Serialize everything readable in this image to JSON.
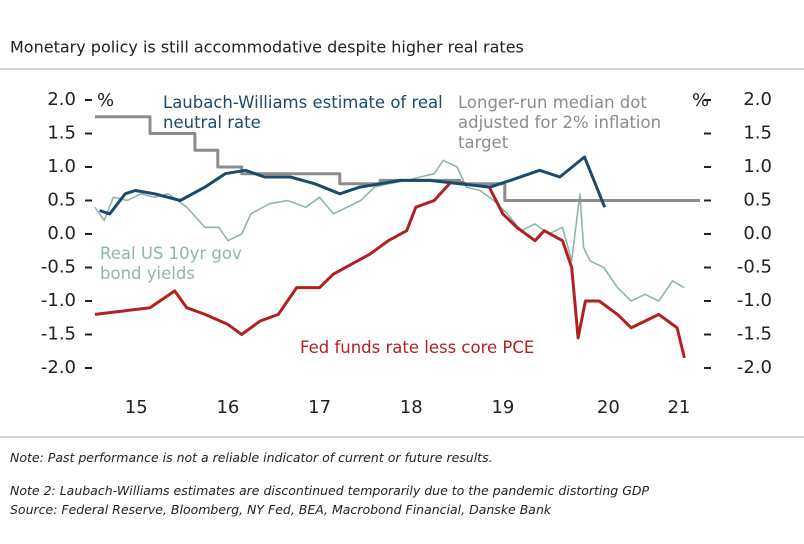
{
  "chart_data": {
    "type": "line",
    "title": "Monetary policy is still accommodative despite higher real rates",
    "y_unit": "%",
    "xlim": [
      2015.0,
      2021.6
    ],
    "xticks": [
      {
        "value": 2015.45,
        "label": "15"
      },
      {
        "value": 2016.45,
        "label": "16"
      },
      {
        "value": 2017.45,
        "label": "17"
      },
      {
        "value": 2018.45,
        "label": "18"
      },
      {
        "value": 2019.45,
        "label": "19"
      },
      {
        "value": 2020.6,
        "label": "20"
      },
      {
        "value": 2021.37,
        "label": "21"
      }
    ],
    "ylim": [
      -2.0,
      2.0
    ],
    "yticks": [
      {
        "value": 2,
        "label": "2.0"
      },
      1.5,
      {
        "value": 1,
        "label": "1.0"
      },
      0.5,
      {
        "value": 0,
        "label": "0.0"
      },
      -0.5,
      {
        "value": -1,
        "label": "-1.0"
      },
      -1.5,
      {
        "value": -2,
        "label": "-2.0"
      }
    ],
    "series": [
      {
        "name": "Laubach-Williams estimate of real neutral rate",
        "color": "#1b4a6b",
        "x": [
          2015.05,
          2015.16,
          2015.33,
          2015.44,
          2015.65,
          2015.93,
          2016.2,
          2016.42,
          2016.64,
          2016.85,
          2017.13,
          2017.4,
          2017.67,
          2017.89,
          2018.11,
          2018.33,
          2018.65,
          2018.98,
          2019.31,
          2019.53,
          2019.85,
          2020.07,
          2020.34,
          2020.56
        ],
        "values": [
          0.35,
          0.3,
          0.6,
          0.65,
          0.6,
          0.5,
          0.7,
          0.9,
          0.95,
          0.85,
          0.85,
          0.75,
          0.6,
          0.7,
          0.75,
          0.8,
          0.8,
          0.75,
          0.7,
          0.8,
          0.95,
          0.85,
          1.15,
          0.4
        ]
      },
      {
        "name": "Longer-run median dot adjusted for 2% inflation target",
        "color": "#8c8c8c",
        "x": [
          2015.0,
          2015.6,
          2015.6,
          2016.09,
          2016.09,
          2016.34,
          2016.34,
          2016.6,
          2016.6,
          2017.67,
          2017.67,
          2018.11,
          2018.11,
          2018.98,
          2018.98,
          2019.47,
          2019.47,
          2021.6
        ],
        "values": [
          1.75,
          1.75,
          1.5,
          1.5,
          1.25,
          1.25,
          1.0,
          1.0,
          0.9,
          0.9,
          0.75,
          0.75,
          0.8,
          0.8,
          0.75,
          0.75,
          0.5,
          0.5
        ]
      },
      {
        "name": "Real US 10yr gov bond yields",
        "color": "#8fb5ae",
        "x": [
          2015.0,
          2015.1,
          2015.2,
          2015.35,
          2015.5,
          2015.65,
          2015.8,
          2016.0,
          2016.2,
          2016.35,
          2016.45,
          2016.6,
          2016.7,
          2016.9,
          2017.1,
          2017.3,
          2017.45,
          2017.6,
          2017.75,
          2017.9,
          2018.05,
          2018.2,
          2018.4,
          2018.55,
          2018.7,
          2018.8,
          2018.95,
          2019.05,
          2019.2,
          2019.35,
          2019.5,
          2019.65,
          2019.8,
          2019.95,
          2020.1,
          2020.2,
          2020.29,
          2020.33,
          2020.4,
          2020.55,
          2020.7,
          2020.85,
          2021.0,
          2021.15,
          2021.3,
          2021.43
        ],
        "values": [
          0.4,
          0.2,
          0.55,
          0.5,
          0.6,
          0.55,
          0.6,
          0.4,
          0.1,
          0.1,
          -0.1,
          0.0,
          0.3,
          0.45,
          0.5,
          0.4,
          0.55,
          0.3,
          0.4,
          0.5,
          0.7,
          0.75,
          0.8,
          0.85,
          0.9,
          1.1,
          1.0,
          0.7,
          0.65,
          0.5,
          0.3,
          0.05,
          0.15,
          0.0,
          0.1,
          -0.4,
          0.6,
          -0.2,
          -0.4,
          -0.5,
          -0.8,
          -1.0,
          -0.9,
          -1.0,
          -0.7,
          -0.8
        ]
      },
      {
        "name": "Fed funds rate less core PCE",
        "color": "#b3201f",
        "x": [
          2015.0,
          2015.3,
          2015.6,
          2015.87,
          2016.0,
          2016.2,
          2016.45,
          2016.6,
          2016.8,
          2017.0,
          2017.2,
          2017.45,
          2017.6,
          2017.8,
          2018.0,
          2018.2,
          2018.4,
          2018.5,
          2018.7,
          2018.9,
          2019.05,
          2019.3,
          2019.45,
          2019.6,
          2019.8,
          2019.9,
          2020.1,
          2020.2,
          2020.27,
          2020.35,
          2020.5,
          2020.7,
          2020.85,
          2021.0,
          2021.15,
          2021.25,
          2021.35,
          2021.43
        ],
        "values": [
          -1.2,
          -1.15,
          -1.1,
          -0.85,
          -1.1,
          -1.2,
          -1.35,
          -1.5,
          -1.3,
          -1.2,
          -0.8,
          -0.8,
          -0.6,
          -0.45,
          -0.3,
          -0.1,
          0.05,
          0.4,
          0.5,
          0.8,
          0.75,
          0.7,
          0.3,
          0.1,
          -0.1,
          0.05,
          -0.1,
          -0.5,
          -1.55,
          -1.0,
          -1.0,
          -1.2,
          -1.4,
          -1.3,
          -1.2,
          -1.3,
          -1.4,
          -1.85
        ]
      }
    ]
  },
  "notes": [
    "Note: Past performance is not a reliable indicator of current or future results.",
    "Note 2: Laubach-Williams estimates are discontinued temporarily due to the pandemic distorting GDP",
    "Source: Federal Reserve, Bloomberg, NY Fed, BEA, Macrobond Financial, Danske Bank"
  ]
}
